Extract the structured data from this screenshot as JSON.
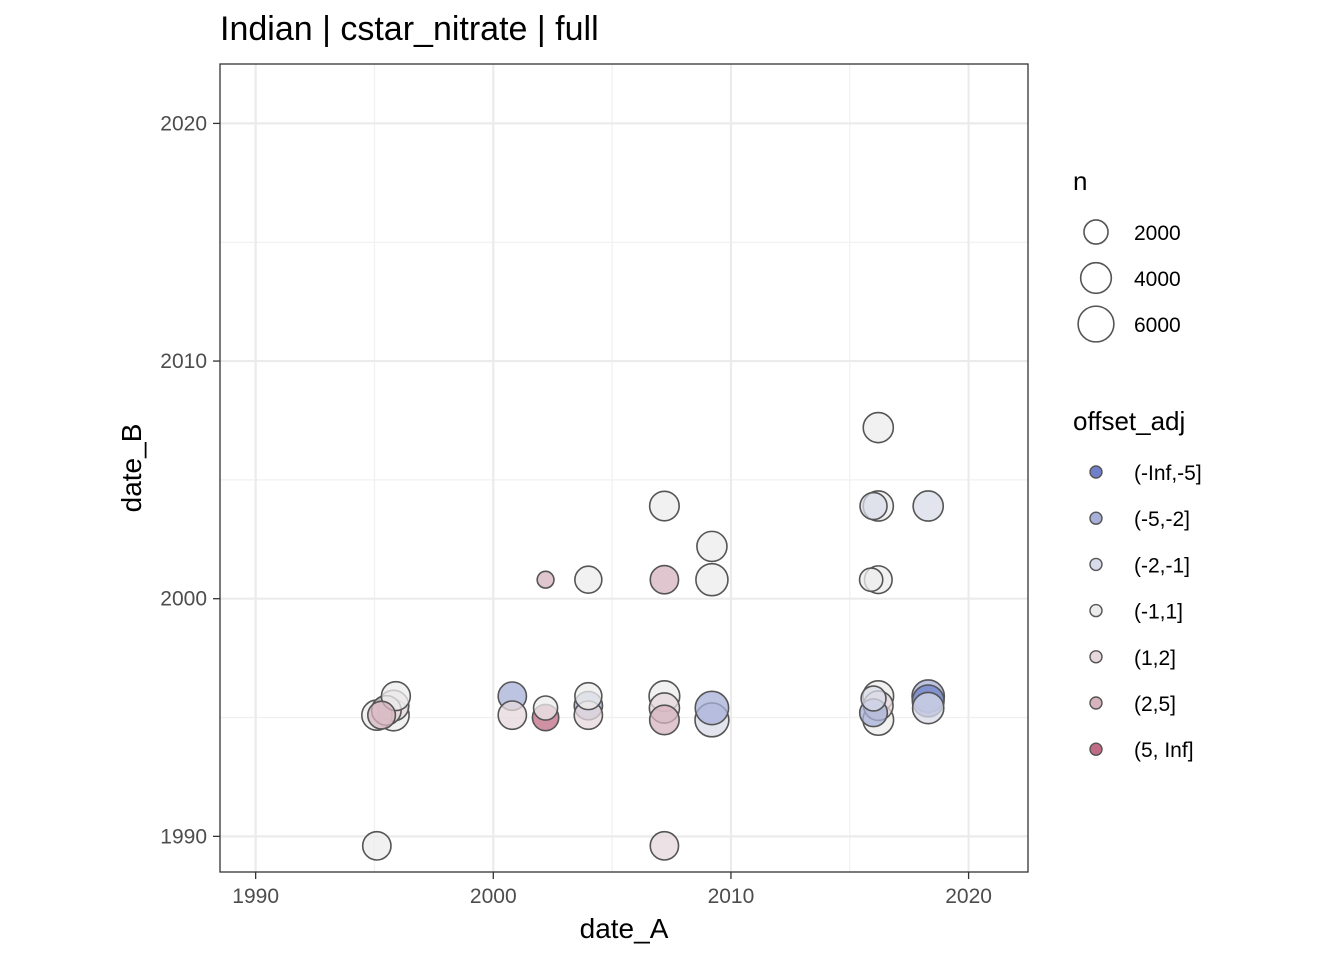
{
  "chart_data": {
    "type": "scatter",
    "title": "Indian | cstar_nitrate | full",
    "xlabel": "date_A",
    "ylabel": "date_B",
    "xlim": [
      1988.5,
      2022.5
    ],
    "ylim": [
      1988.5,
      2022.5
    ],
    "x_ticks": [
      1990,
      2000,
      2010,
      2020
    ],
    "x_tick_labels": [
      "1990",
      "2000",
      "2010",
      "2020"
    ],
    "y_ticks": [
      1990,
      2000,
      2010,
      2020
    ],
    "y_tick_labels": [
      "1990",
      "2000",
      "2010",
      "2020"
    ],
    "grid": true,
    "legend_size": {
      "title": "n",
      "entries": [
        {
          "value": 2000,
          "label": "2000"
        },
        {
          "value": 4000,
          "label": "4000"
        },
        {
          "value": 6000,
          "label": "6000"
        }
      ]
    },
    "legend_color": {
      "title": "offset_adj",
      "entries": [
        {
          "label": "(-Inf,-5]",
          "color": "#6f80c8"
        },
        {
          "label": "(-5,-2]",
          "color": "#a7b0d8"
        },
        {
          "label": "(-2,-1]",
          "color": "#d8dbe8"
        },
        {
          "label": "(-1,1]",
          "color": "#ececec"
        },
        {
          "label": "(1,2]",
          "color": "#e6d8dc"
        },
        {
          "label": "(2,5]",
          "color": "#d6b3bd"
        },
        {
          "label": "(5, Inf]",
          "color": "#c06c86"
        }
      ]
    },
    "points": [
      {
        "x": 1995.1,
        "y": 1989.6,
        "n": 3200,
        "cat": "(-1,1]"
      },
      {
        "x": 2007.2,
        "y": 1989.6,
        "n": 3200,
        "cat": "(1,2]"
      },
      {
        "x": 1995.1,
        "y": 1995.1,
        "n": 3800,
        "cat": "(-1,1]"
      },
      {
        "x": 1995.3,
        "y": 1995.1,
        "n": 3000,
        "cat": "(2,5]"
      },
      {
        "x": 1995.5,
        "y": 1995.3,
        "n": 3600,
        "cat": "(1,2]"
      },
      {
        "x": 1995.8,
        "y": 1995.1,
        "n": 4200,
        "cat": "(-1,1]"
      },
      {
        "x": 1995.8,
        "y": 1995.5,
        "n": 4000,
        "cat": "(1,2]"
      },
      {
        "x": 1995.9,
        "y": 1995.9,
        "n": 3400,
        "cat": "(-1,1]"
      },
      {
        "x": 2000.8,
        "y": 1995.9,
        "n": 3200,
        "cat": "(-5,-2]"
      },
      {
        "x": 2000.8,
        "y": 1995.1,
        "n": 3200,
        "cat": "(1,2]"
      },
      {
        "x": 2002.2,
        "y": 1995.4,
        "n": 2000,
        "cat": "(-1,1]"
      },
      {
        "x": 2002.2,
        "y": 1995.0,
        "n": 2600,
        "cat": "(5, Inf]"
      },
      {
        "x": 2002.2,
        "y": 2000.8,
        "n": 600,
        "cat": "(2,5]"
      },
      {
        "x": 2004.0,
        "y": 2000.8,
        "n": 2800,
        "cat": "(-1,1]"
      },
      {
        "x": 2004.0,
        "y": 1995.9,
        "n": 2800,
        "cat": "(-1,1]"
      },
      {
        "x": 2004.0,
        "y": 1995.5,
        "n": 3200,
        "cat": "(-5,-2]"
      },
      {
        "x": 2004.0,
        "y": 1995.1,
        "n": 3200,
        "cat": "(1,2]"
      },
      {
        "x": 2007.2,
        "y": 2003.9,
        "n": 3600,
        "cat": "(-1,1]"
      },
      {
        "x": 2007.2,
        "y": 2000.8,
        "n": 3200,
        "cat": "(2,5]"
      },
      {
        "x": 2007.2,
        "y": 1995.9,
        "n": 4000,
        "cat": "(-1,1]"
      },
      {
        "x": 2007.2,
        "y": 1995.4,
        "n": 3800,
        "cat": "(1,2]"
      },
      {
        "x": 2007.2,
        "y": 1994.9,
        "n": 3600,
        "cat": "(2,5]"
      },
      {
        "x": 2009.2,
        "y": 2002.2,
        "n": 3800,
        "cat": "(-1,1]"
      },
      {
        "x": 2009.2,
        "y": 2000.8,
        "n": 4500,
        "cat": "(-1,1]"
      },
      {
        "x": 2009.2,
        "y": 1995.4,
        "n": 5000,
        "cat": "(-5,-2]"
      },
      {
        "x": 2009.2,
        "y": 1994.9,
        "n": 5200,
        "cat": "(-2,-1]"
      },
      {
        "x": 2016.2,
        "y": 2007.2,
        "n": 3800,
        "cat": "(-1,1]"
      },
      {
        "x": 2016.0,
        "y": 2003.9,
        "n": 2800,
        "cat": "(-2,-1]"
      },
      {
        "x": 2016.2,
        "y": 2003.9,
        "n": 3800,
        "cat": "(-1,1]"
      },
      {
        "x": 2015.9,
        "y": 2000.8,
        "n": 1800,
        "cat": "(-1,1]"
      },
      {
        "x": 2016.2,
        "y": 2000.8,
        "n": 3000,
        "cat": "(-1,1]"
      },
      {
        "x": 2016.2,
        "y": 1995.9,
        "n": 4000,
        "cat": "(-1,1]"
      },
      {
        "x": 2016.0,
        "y": 1995.8,
        "n": 2200,
        "cat": "(-2,-1]"
      },
      {
        "x": 2016.2,
        "y": 1995.5,
        "n": 3600,
        "cat": "(1,2]"
      },
      {
        "x": 2016.0,
        "y": 1995.2,
        "n": 3000,
        "cat": "(-5,-2]"
      },
      {
        "x": 2016.2,
        "y": 1994.9,
        "n": 4000,
        "cat": "(-1,1]"
      },
      {
        "x": 2018.3,
        "y": 2003.9,
        "n": 3800,
        "cat": "(-2,-1]"
      },
      {
        "x": 2018.3,
        "y": 1995.9,
        "n": 4600,
        "cat": "(-5,-2]"
      },
      {
        "x": 2018.3,
        "y": 1995.7,
        "n": 4400,
        "cat": "(-Inf,-5]"
      },
      {
        "x": 2018.3,
        "y": 1995.4,
        "n": 4200,
        "cat": "(-2,-1]"
      }
    ]
  }
}
